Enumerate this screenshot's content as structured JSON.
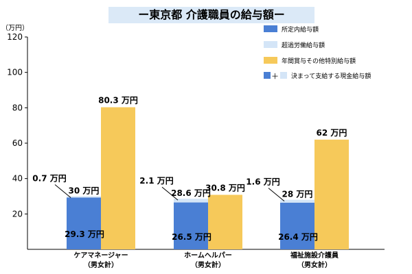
{
  "chart_data": {
    "type": "bar",
    "title": "ー東京都 介護職員の給与額ー",
    "ylabel": "（万円）",
    "ylim": [
      0,
      120
    ],
    "yticks": [
      20,
      40,
      60,
      80,
      100,
      120
    ],
    "colors": {
      "base": "#4a7fd4",
      "overtime": "#d4e5f7",
      "bonus": "#f6c95a",
      "axis": "#000000",
      "legend_border": "#000000"
    },
    "categories": [
      {
        "line1": "ケアマネージャー",
        "line2": "（男女計）"
      },
      {
        "line1": "ホームヘルパー",
        "line2": "（男女計）"
      },
      {
        "line1": "福祉施設介護員",
        "line2": "（男女計）"
      }
    ],
    "series": [
      {
        "name": "所定内給与額",
        "values": [
          29.3,
          26.5,
          26.4
        ]
      },
      {
        "name": "超過労働給与額",
        "values": [
          0.7,
          2.1,
          1.6
        ]
      },
      {
        "name": "年間賞与その他特別給与額",
        "values": [
          80.3,
          30.8,
          62
        ]
      }
    ],
    "labels": {
      "base": [
        "29.3 万円",
        "26.5 万円",
        "26.4 万円"
      ],
      "overtime": [
        "0.7 万円",
        "2.1 万円",
        "1.6 万円"
      ],
      "monthly_total": [
        "30 万円",
        "28.6 万円",
        "28 万円"
      ],
      "bonus": [
        "80.3 万円",
        "30.8 万円",
        "62 万円"
      ]
    },
    "legend": {
      "items": [
        "所定内給与額",
        "超過労働給与額",
        "年間賞与その他特別給与額"
      ],
      "combo_plus": "＋",
      "combo_text": "決まって支給する現金給与額"
    }
  }
}
